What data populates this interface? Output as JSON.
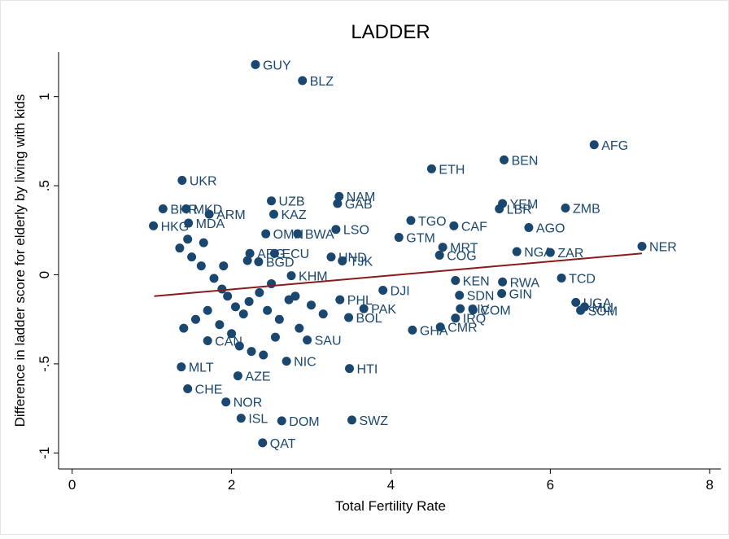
{
  "chart_data": {
    "type": "scatter",
    "title": "LADDER",
    "x_label": "Total Fertility Rate",
    "y_label": "Difference in ladder score for elderly by living with kids",
    "xlim": [
      -0.17,
      8.14
    ],
    "ylim": [
      -1.09,
      1.25
    ],
    "xticks": [
      0,
      2,
      4,
      6,
      8
    ],
    "yticks": [
      -1,
      {
        "value": -0.5,
        "label": "-.5"
      },
      0,
      {
        "value": 0.5,
        "label": ".5"
      },
      1
    ],
    "color": "#1a476f",
    "labels": [
      "GUY",
      "BLZ",
      "AFG",
      "BEN",
      "ETH",
      "UKR",
      "NAM",
      "UZB",
      "GAB",
      "YEM",
      "ZMB",
      "LBR",
      "BHR",
      "MKD",
      "ARM",
      "KAZ",
      "TGO",
      "CAF",
      "HKG",
      "MDA",
      "AGO",
      "LSO",
      "BWA",
      "OMN",
      "GTM",
      "MRT",
      "NER",
      "NGA",
      "ZAR",
      "ECU",
      "ARG",
      "HND",
      "TJK",
      "COG",
      "BGD",
      "TCD",
      "KEN",
      "RWA",
      "UGA",
      "MLI",
      "SOM",
      "GIN",
      "SDN",
      "COM",
      "CIV",
      "PAK",
      "BOL",
      "IRQ",
      "CMR",
      "GHA",
      "SAU",
      "HTI",
      "MLT",
      "CHE",
      "NOR",
      "ISL",
      "DOM",
      "SWZ",
      "QAT",
      "NIC",
      "AZE",
      "KHM",
      "PHL",
      "CAN",
      "DJI",
      null,
      null,
      null,
      null,
      null,
      null,
      null,
      null,
      null,
      null,
      null,
      null,
      null,
      null,
      null,
      null,
      null,
      null,
      null,
      null,
      null,
      null,
      null,
      null,
      null,
      null,
      null,
      null,
      null,
      null
    ],
    "x": [
      2.3,
      2.89,
      6.55,
      5.42,
      4.51,
      1.38,
      3.35,
      2.5,
      3.33,
      5.4,
      6.19,
      5.36,
      1.14,
      1.43,
      1.72,
      2.53,
      4.25,
      4.79,
      1.02,
      1.46,
      5.73,
      3.31,
      2.83,
      2.43,
      4.1,
      4.65,
      7.15,
      5.58,
      6.0,
      2.54,
      2.23,
      3.25,
      3.39,
      4.61,
      2.34,
      6.14,
      4.81,
      5.4,
      6.32,
      6.43,
      6.38,
      5.39,
      4.86,
      5.03,
      4.87,
      3.66,
      3.47,
      4.81,
      4.62,
      4.27,
      2.95,
      3.48,
      1.37,
      1.45,
      1.93,
      2.12,
      2.63,
      3.51,
      2.39,
      2.69,
      2.08,
      2.75,
      3.36,
      1.7,
      3.9,
      1.35,
      1.5,
      1.62,
      1.78,
      1.88,
      1.95,
      2.05,
      2.15,
      2.22,
      2.35,
      2.45,
      2.6,
      2.72,
      2.85,
      3.0,
      3.15,
      1.4,
      1.55,
      1.7,
      1.85,
      2.0,
      2.1,
      2.25,
      2.4,
      2.55,
      1.45,
      1.65,
      1.9,
      2.2,
      2.5,
      2.8
    ],
    "y": [
      1.18,
      1.09,
      0.73,
      0.645,
      0.595,
      0.53,
      0.44,
      0.415,
      0.4,
      0.4,
      0.375,
      0.37,
      0.37,
      0.37,
      0.34,
      0.34,
      0.305,
      0.275,
      0.275,
      0.29,
      0.265,
      0.255,
      0.23,
      0.23,
      0.21,
      0.155,
      0.16,
      0.13,
      0.125,
      0.12,
      0.12,
      0.1,
      0.078,
      0.11,
      0.073,
      -0.018,
      -0.032,
      -0.04,
      -0.155,
      -0.18,
      -0.2,
      -0.105,
      -0.115,
      -0.197,
      -0.19,
      -0.19,
      -0.24,
      -0.243,
      -0.293,
      -0.31,
      -0.366,
      -0.526,
      -0.517,
      -0.64,
      -0.714,
      -0.805,
      -0.82,
      -0.815,
      -0.943,
      -0.485,
      -0.567,
      -0.005,
      -0.14,
      -0.37,
      -0.087,
      0.15,
      0.1,
      0.05,
      -0.02,
      -0.08,
      -0.12,
      -0.18,
      -0.22,
      -0.15,
      -0.1,
      -0.2,
      -0.25,
      -0.14,
      -0.3,
      -0.17,
      -0.22,
      -0.3,
      -0.25,
      -0.2,
      -0.28,
      -0.33,
      -0.4,
      -0.43,
      -0.45,
      -0.35,
      0.2,
      0.18,
      0.05,
      0.08,
      -0.05,
      -0.12
    ],
    "fit": {
      "x": [
        1.03,
        7.15
      ],
      "y": [
        -0.12,
        0.12
      ],
      "color": "#8b1a1a"
    }
  }
}
